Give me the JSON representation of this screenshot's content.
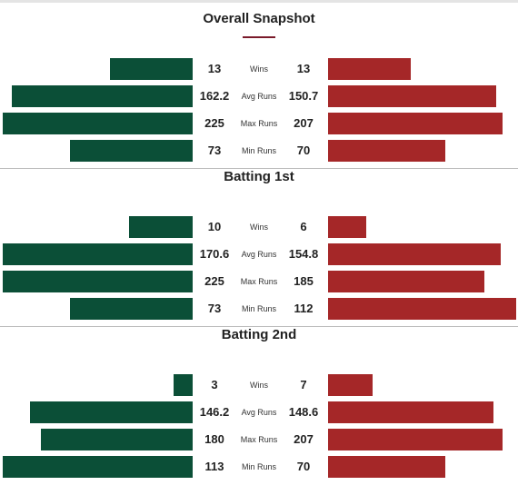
{
  "chart_data": [
    {
      "type": "bar",
      "title": "Overall Snapshot",
      "categories": [
        "Wins",
        "Avg Runs",
        "Max Runs",
        "Min Runs"
      ],
      "series": [
        {
          "values": [
            13,
            162.2,
            225,
            73
          ],
          "labels": [
            "13",
            "162.2",
            "225",
            "73"
          ],
          "color": "#0b4f37"
        },
        {
          "values": [
            13,
            150.7,
            207,
            70
          ],
          "labels": [
            "13",
            "150.7",
            "207",
            "70"
          ],
          "color": "#a52728"
        }
      ]
    },
    {
      "type": "bar",
      "title": "Batting 1st",
      "categories": [
        "Wins",
        "Avg Runs",
        "Max Runs",
        "Min Runs"
      ],
      "series": [
        {
          "values": [
            10,
            170.6,
            225,
            73
          ],
          "labels": [
            "10",
            "170.6",
            "225",
            "73"
          ],
          "color": "#0b4f37"
        },
        {
          "values": [
            6,
            154.8,
            185,
            112
          ],
          "labels": [
            "6",
            "154.8",
            "185",
            "112"
          ],
          "color": "#a52728"
        }
      ]
    },
    {
      "type": "bar",
      "title": "Batting 2nd",
      "categories": [
        "Wins",
        "Avg Runs",
        "Max Runs",
        "Min Runs"
      ],
      "series": [
        {
          "values": [
            3,
            146.2,
            180,
            113
          ],
          "labels": [
            "3",
            "146.2",
            "180",
            "113"
          ],
          "color": "#0b4f37"
        },
        {
          "values": [
            7,
            148.6,
            207,
            70
          ],
          "labels": [
            "7",
            "148.6",
            "207",
            "70"
          ],
          "color": "#a52728"
        }
      ]
    }
  ],
  "colors": {
    "left": "#0b4f37",
    "right": "#a52728",
    "accent": "#7a1a2a"
  }
}
